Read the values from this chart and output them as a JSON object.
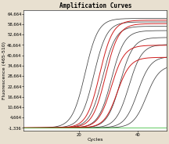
{
  "title": "Amplification Curves",
  "xlabel": "Cycles",
  "ylabel": "Fluorescence (465-510)",
  "xlim": [
    1,
    50
  ],
  "ylim": [
    -3000,
    67000
  ],
  "yticks": [
    -1336,
    4664,
    10664,
    16664,
    22664,
    28664,
    34664,
    40664,
    46664,
    52664,
    58664,
    64664
  ],
  "ytick_labels": [
    "-1,336",
    "4,664",
    "10,664",
    "16,664",
    "22,664",
    "28,664",
    "34,664",
    "40,664",
    "46,664",
    "52,664",
    "58,664",
    "64,664"
  ],
  "xticks": [
    20,
    40
  ],
  "background_color": "#e8e0d0",
  "plot_bg_color": "#ffffff",
  "dark_curves_color": "#2a2a2a",
  "red_curves_color": "#cc1111",
  "green_line_color": "#33bb33",
  "title_fontsize": 5.5,
  "axis_fontsize": 4.5,
  "tick_fontsize": 3.8,
  "dark_curve_midpoints": [
    22,
    25,
    28,
    31,
    34,
    37,
    40,
    43
  ],
  "red_curve_midpoints": [
    27,
    29,
    31,
    33
  ],
  "dark_curve_plateaus": [
    62000,
    60000,
    57500,
    55000,
    51000,
    47000,
    40000,
    35000
  ],
  "red_curve_plateaus": [
    61000,
    59000,
    46500,
    39500
  ],
  "steepness": 0.45
}
